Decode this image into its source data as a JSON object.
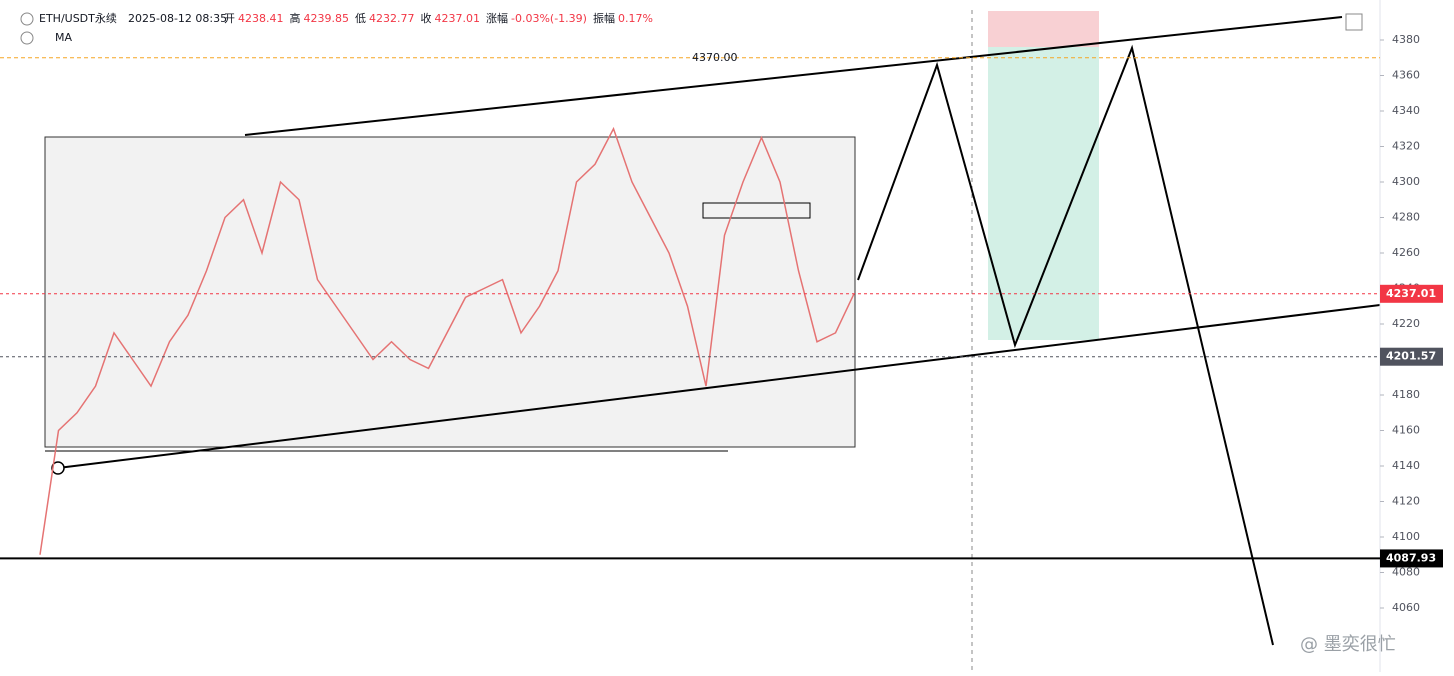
{
  "header": {
    "symbol": "ETH/USDT永续",
    "datetime": "2025-08-12 08:35",
    "fields": [
      [
        "开",
        "4238.41"
      ],
      [
        "高",
        "4239.85"
      ],
      [
        "低",
        "4232.77"
      ],
      [
        "收",
        "4237.01"
      ],
      [
        "涨幅",
        "-0.03%(-1.39)"
      ],
      [
        "振幅",
        "0.17%"
      ]
    ],
    "indicator": "MA"
  },
  "price_axis": {
    "ylim": [
      4060,
      4380
    ],
    "ticks": [
      4060,
      4080,
      4100,
      4120,
      4140,
      4160,
      4180,
      4200,
      4220,
      4240,
      4260,
      4280,
      4300,
      4320,
      4340,
      4360,
      4380
    ]
  },
  "price_tags": [
    {
      "value": 4237.01,
      "color": "#f23645"
    },
    {
      "value": 4201.57,
      "color": "#50535e"
    },
    {
      "value": 4087.93,
      "color": "#000000"
    }
  ],
  "annotation": {
    "value": 4370,
    "label": "4370.00"
  },
  "price_trace": {
    "values": [
      4090,
      4160,
      4170,
      4185,
      4215,
      4200,
      4185,
      4210,
      4225,
      4250,
      4280,
      4290,
      4260,
      4300,
      4290,
      4245,
      4230,
      4215,
      4200,
      4210,
      4200,
      4195,
      4215,
      4235,
      4240,
      4245,
      4215,
      4230,
      4250,
      4300,
      4310,
      4330,
      4300,
      4280,
      4260,
      4230,
      4185,
      4270,
      4300,
      4325,
      4300,
      4250,
      4210,
      4215,
      4237
    ],
    "color": "#e57373"
  },
  "watermark": "@ 墨奕很忙"
}
